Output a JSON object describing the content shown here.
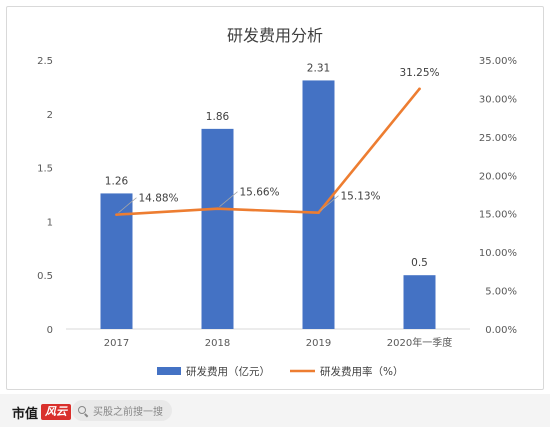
{
  "chart_data": {
    "type": "bar+line",
    "title": "研发费用分析",
    "categories": [
      "2017",
      "2018",
      "2019",
      "2020年一季度"
    ],
    "series": [
      {
        "name": "研发费用（亿元）",
        "type": "bar",
        "axis": "left",
        "color": "#4472c4",
        "values": [
          1.26,
          1.86,
          2.31,
          0.5
        ],
        "labels": [
          "1.26",
          "1.86",
          "2.31",
          "0.5"
        ]
      },
      {
        "name": "研发费用率（%）",
        "type": "line",
        "axis": "right",
        "color": "#ed7d31",
        "values": [
          14.88,
          15.66,
          15.13,
          31.25
        ],
        "labels": [
          "14.88%",
          "15.66%",
          "15.13%",
          "31.25%"
        ]
      }
    ],
    "y_left": {
      "ylim": [
        0,
        2.5
      ],
      "ticks": [
        0,
        0.5,
        1,
        1.5,
        2,
        2.5
      ],
      "tick_labels": [
        "0",
        "0.5",
        "1",
        "1.5",
        "2",
        "2.5"
      ]
    },
    "y_right": {
      "ylim": [
        0,
        35
      ],
      "ticks": [
        0,
        5,
        10,
        15,
        20,
        25,
        30,
        35
      ],
      "tick_labels": [
        "0.00%",
        "5.00%",
        "10.00%",
        "15.00%",
        "20.00%",
        "25.00%",
        "30.00%",
        "35.00%"
      ]
    },
    "legend_position": "bottom",
    "grid": false
  },
  "footer": {
    "brand_text": "市值",
    "brand_mark": "风云",
    "search_placeholder": "买股之前搜一搜",
    "search_icon": "search-icon"
  }
}
